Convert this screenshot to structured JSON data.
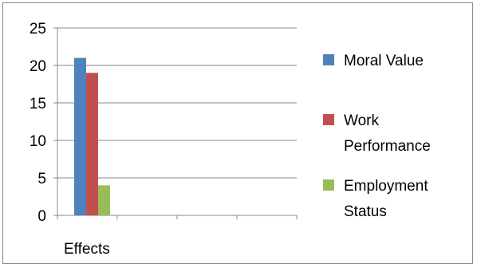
{
  "chart_data": {
    "type": "bar",
    "categories": [
      "Effects"
    ],
    "series": [
      {
        "name": "Moral Value",
        "values": [
          21
        ],
        "color": "#4F81BD"
      },
      {
        "name": "Work Performance",
        "values": [
          19
        ],
        "color": "#C0504D"
      },
      {
        "name": "Employment Status",
        "values": [
          4
        ],
        "color": "#9BBB59"
      }
    ],
    "ylim": [
      0,
      25
    ],
    "yticks": [
      "0",
      "5",
      "10",
      "15",
      "20",
      "25"
    ],
    "title": "",
    "xlabel": "",
    "ylabel": "",
    "grid": true,
    "legend": {
      "position": "right",
      "entries": [
        {
          "lines": [
            "Moral Value"
          ]
        },
        {
          "lines": [
            "Work",
            "Performance"
          ]
        },
        {
          "lines": [
            "Employment",
            "Status"
          ]
        }
      ]
    }
  }
}
